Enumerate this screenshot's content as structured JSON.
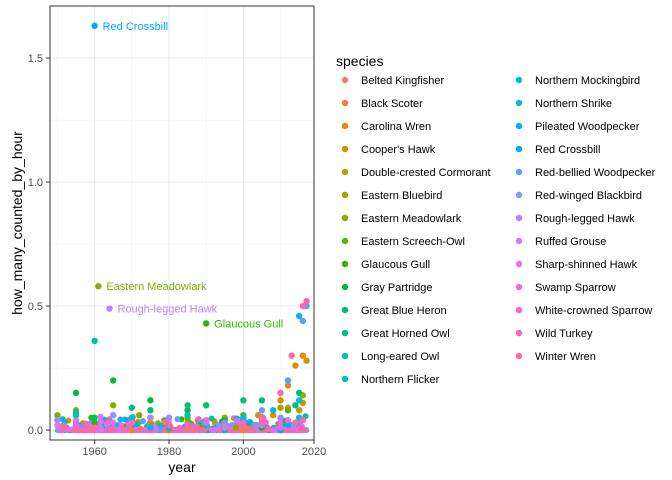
{
  "chart_data": {
    "type": "scatter",
    "title": "",
    "xlabel": "year",
    "ylabel": "how_many_counted_by_hour",
    "xlim": [
      1948,
      2019
    ],
    "ylim": [
      -0.04,
      1.71
    ],
    "x_ticks": [
      1960,
      1980,
      2000,
      2020
    ],
    "y_ticks": [
      0.0,
      0.5,
      1.0,
      1.5
    ],
    "x_tick_labels": [
      "1960",
      "1980",
      "2000",
      "2020"
    ],
    "y_tick_labels": [
      "0.0",
      "0.5",
      "1.0",
      "1.5"
    ],
    "grid": true,
    "legend": {
      "title": "species",
      "position": "right",
      "columns": 2
    },
    "series": [
      {
        "name": "Belted Kingfisher",
        "color": "#F8766D",
        "points": [
          [
            1965,
            0.01
          ],
          [
            1975,
            0.02
          ],
          [
            1990,
            0.01
          ],
          [
            2005,
            0.03
          ],
          [
            2012,
            0.02
          ]
        ]
      },
      {
        "name": "Black Scoter",
        "color": "#EF7F47",
        "points": [
          [
            1970,
            0.0
          ],
          [
            1985,
            0.01
          ],
          [
            2000,
            0.0
          ],
          [
            2010,
            0.01
          ]
        ]
      },
      {
        "name": "Carolina Wren",
        "color": "#E08B00",
        "points": [
          [
            2008,
            0.06
          ],
          [
            2010,
            0.12
          ],
          [
            2012,
            0.18
          ],
          [
            2014,
            0.26
          ],
          [
            2016,
            0.3
          ],
          [
            2017,
            0.28
          ]
        ]
      },
      {
        "name": "Cooper's Hawk",
        "color": "#CF9400",
        "points": [
          [
            1985,
            0.02
          ],
          [
            1995,
            0.03
          ],
          [
            2004,
            0.06
          ],
          [
            2012,
            0.09
          ],
          [
            2016,
            0.11
          ]
        ]
      },
      {
        "name": "Double-crested Cormorant",
        "color": "#B79F00",
        "points": [
          [
            1980,
            0.0
          ],
          [
            1995,
            0.02
          ],
          [
            2005,
            0.04
          ],
          [
            2015,
            0.08
          ]
        ]
      },
      {
        "name": "Eastern Bluebird",
        "color": "#9CA700",
        "points": [
          [
            1955,
            0.04
          ],
          [
            1975,
            0.03
          ],
          [
            1995,
            0.05
          ],
          [
            2010,
            0.09
          ],
          [
            2016,
            0.14
          ]
        ]
      },
      {
        "name": "Eastern Meadowlark",
        "color": "#85AD00",
        "points": [
          [
            1950,
            0.06
          ],
          [
            1955,
            0.08
          ],
          [
            1961,
            0.58
          ],
          [
            1965,
            0.1
          ],
          [
            1972,
            0.06
          ],
          [
            1985,
            0.03
          ],
          [
            1998,
            0.01
          ]
        ]
      },
      {
        "name": "Eastern Screech-Owl",
        "color": "#5BB300",
        "points": [
          [
            1955,
            0.02
          ],
          [
            1970,
            0.04
          ],
          [
            1985,
            0.05
          ],
          [
            2000,
            0.06
          ],
          [
            2012,
            0.08
          ]
        ]
      },
      {
        "name": "Glaucous Gull",
        "color": "#2BB600",
        "points": [
          [
            1960,
            0.03
          ],
          [
            1975,
            0.05
          ],
          [
            1990,
            0.43
          ],
          [
            2000,
            0.04
          ],
          [
            2010,
            0.02
          ]
        ]
      },
      {
        "name": "Gray Partridge",
        "color": "#00BA38",
        "points": [
          [
            1955,
            0.15
          ],
          [
            1965,
            0.2
          ],
          [
            1975,
            0.12
          ],
          [
            1985,
            0.08
          ],
          [
            1995,
            0.04
          ],
          [
            2005,
            0.01
          ]
        ]
      },
      {
        "name": "Great Blue Heron",
        "color": "#00BE6C",
        "points": [
          [
            1960,
            0.05
          ],
          [
            1975,
            0.08
          ],
          [
            1990,
            0.1
          ],
          [
            2005,
            0.12
          ],
          [
            2015,
            0.15
          ]
        ]
      },
      {
        "name": "Great Horned Owl",
        "color": "#00BF7D",
        "points": [
          [
            1955,
            0.06
          ],
          [
            1970,
            0.09
          ],
          [
            1985,
            0.1
          ],
          [
            2000,
            0.12
          ],
          [
            2014,
            0.1
          ]
        ]
      },
      {
        "name": "Long-eared Owl",
        "color": "#00C0AB",
        "points": [
          [
            1960,
            0.36
          ],
          [
            1965,
            0.02
          ],
          [
            1980,
            0.01
          ],
          [
            1995,
            0.0
          ],
          [
            2010,
            0.01
          ]
        ]
      },
      {
        "name": "Northern Flicker",
        "color": "#00BFC4",
        "points": [
          [
            1955,
            0.07
          ],
          [
            1970,
            0.05
          ],
          [
            1985,
            0.06
          ],
          [
            2000,
            0.04
          ],
          [
            2015,
            0.05
          ]
        ]
      },
      {
        "name": "Northern Mockingbird",
        "color": "#00BCD8",
        "points": [
          [
            1990,
            0.02
          ],
          [
            2000,
            0.05
          ],
          [
            2008,
            0.08
          ],
          [
            2015,
            0.12
          ]
        ]
      },
      {
        "name": "Northern Shrike",
        "color": "#00B7E8",
        "points": [
          [
            1955,
            0.03
          ],
          [
            1970,
            0.04
          ],
          [
            1985,
            0.02
          ],
          [
            2000,
            0.03
          ],
          [
            2012,
            0.02
          ]
        ]
      },
      {
        "name": "Pileated Woodpecker",
        "color": "#00B0F6",
        "points": [
          [
            1975,
            0.01
          ],
          [
            1990,
            0.03
          ],
          [
            2005,
            0.05
          ],
          [
            2015,
            0.46
          ]
        ]
      },
      {
        "name": "Red Crossbill",
        "color": "#00A9FF",
        "points": [
          [
            1960,
            1.63
          ],
          [
            1965,
            0.02
          ],
          [
            1980,
            0.01
          ],
          [
            1995,
            0.01
          ],
          [
            2010,
            0.0
          ]
        ]
      },
      {
        "name": "Red-bellied Woodpecker",
        "color": "#619CFF",
        "points": [
          [
            1995,
            0.03
          ],
          [
            2005,
            0.08
          ],
          [
            2012,
            0.2
          ],
          [
            2016,
            0.44
          ],
          [
            2017,
            0.5
          ]
        ]
      },
      {
        "name": "Red-winged Blackbird",
        "color": "#8F91FF",
        "points": [
          [
            1950,
            0.04
          ],
          [
            1965,
            0.06
          ],
          [
            1980,
            0.05
          ],
          [
            1995,
            0.03
          ],
          [
            2010,
            0.05
          ]
        ]
      },
      {
        "name": "Rough-legged Hawk",
        "color": "#B983FF",
        "points": [
          [
            1955,
            0.04
          ],
          [
            1964,
            0.49
          ],
          [
            1975,
            0.05
          ],
          [
            1990,
            0.03
          ],
          [
            2005,
            0.02
          ]
        ]
      },
      {
        "name": "Ruffed Grouse",
        "color": "#D277FF",
        "points": [
          [
            1950,
            0.02
          ],
          [
            1965,
            0.03
          ],
          [
            1980,
            0.02
          ],
          [
            1995,
            0.01
          ],
          [
            2010,
            0.01
          ]
        ]
      },
      {
        "name": "Sharp-shinned Hawk",
        "color": "#E76BF3",
        "points": [
          [
            1960,
            0.01
          ],
          [
            1980,
            0.02
          ],
          [
            2000,
            0.03
          ],
          [
            2012,
            0.04
          ]
        ]
      },
      {
        "name": "Swamp Sparrow",
        "color": "#F564E3",
        "points": [
          [
            1955,
            0.02
          ],
          [
            1970,
            0.03
          ],
          [
            1990,
            0.04
          ],
          [
            2010,
            0.03
          ]
        ]
      },
      {
        "name": "White-crowned Sparrow",
        "color": "#FF61C3",
        "points": [
          [
            1965,
            0.01
          ],
          [
            1985,
            0.02
          ],
          [
            2005,
            0.03
          ],
          [
            2016,
            0.04
          ]
        ]
      },
      {
        "name": "Wild Turkey",
        "color": "#FF65AC",
        "points": [
          [
            2005,
            0.05
          ],
          [
            2010,
            0.15
          ],
          [
            2013,
            0.3
          ],
          [
            2016,
            0.5
          ],
          [
            2017,
            0.52
          ]
        ]
      },
      {
        "name": "Winter Wren",
        "color": "#FD6C96",
        "points": [
          [
            1960,
            0.01
          ],
          [
            1980,
            0.02
          ],
          [
            2000,
            0.02
          ],
          [
            2014,
            0.03
          ]
        ]
      }
    ],
    "annotations": [
      {
        "text": "Red Crossbill",
        "x": 1960,
        "y": 1.63,
        "color": "#00A9FF"
      },
      {
        "text": "Eastern Meadowlark",
        "x": 1961,
        "y": 0.58,
        "color": "#85AD00"
      },
      {
        "text": "Rough-legged Hawk",
        "x": 1964,
        "y": 0.49,
        "color": "#B983FF"
      },
      {
        "text": "Glaucous Gull",
        "x": 1990,
        "y": 0.43,
        "color": "#2BB600"
      }
    ]
  }
}
